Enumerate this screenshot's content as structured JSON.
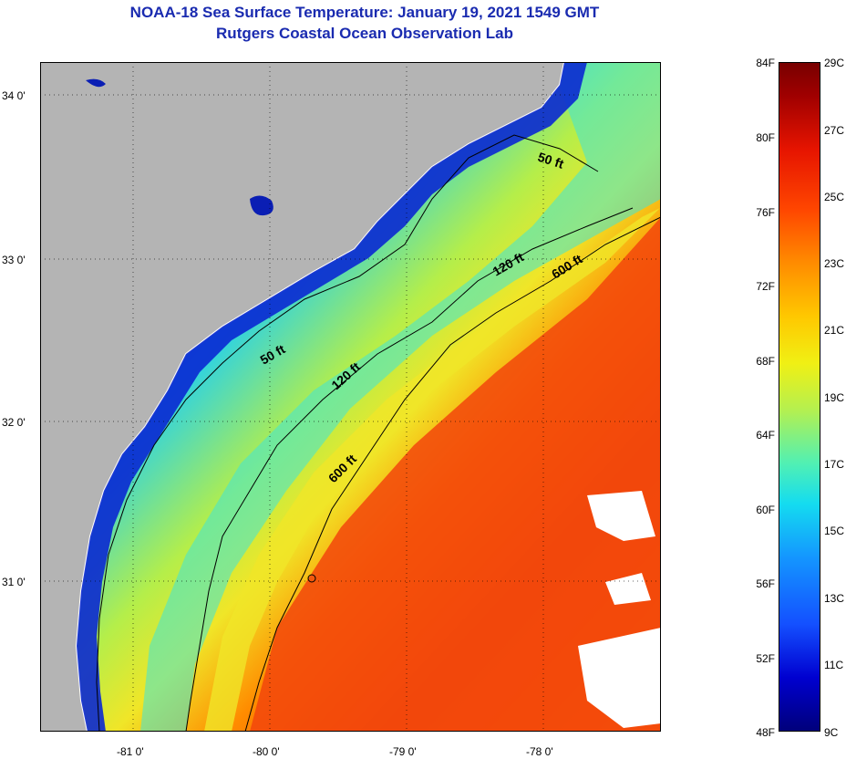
{
  "header": {
    "title": "NOAA-18 Sea Surface Temperature:  January 19, 2021 1549 GMT",
    "subtitle": "Rutgers Coastal Ocean Observation Lab"
  },
  "map": {
    "lat_labels": [
      "34 0'",
      "33 0'",
      "32 0'",
      "31 0'"
    ],
    "lon_labels": [
      "-81 0'",
      "-80 0'",
      "-79 0'",
      "-78 0'"
    ],
    "contours": [
      {
        "label": "50 ft"
      },
      {
        "label": "50 ft"
      },
      {
        "label": "120 ft"
      },
      {
        "label": "120 ft"
      },
      {
        "label": "600 ft"
      },
      {
        "label": "600 ft"
      }
    ],
    "colors": {
      "land": "#b4b4b4",
      "cloud": "#ffffff",
      "contour": "#000000"
    }
  },
  "colorbar": {
    "fahrenheit_labels": [
      "84F",
      "80F",
      "76F",
      "72F",
      "68F",
      "64F",
      "60F",
      "56F",
      "52F",
      "48F"
    ],
    "celsius_labels": [
      "29C",
      "27C",
      "25C",
      "23C",
      "21C",
      "19C",
      "17C",
      "15C",
      "13C",
      "11C",
      "9C"
    ],
    "gradient": [
      "#00007a",
      "#0000d0",
      "#1450ff",
      "#1496ff",
      "#14dcf0",
      "#50f0b4",
      "#b4f050",
      "#f0f014",
      "#ffc800",
      "#ff8c00",
      "#ff4600",
      "#e61400",
      "#a00000",
      "#780000"
    ]
  }
}
